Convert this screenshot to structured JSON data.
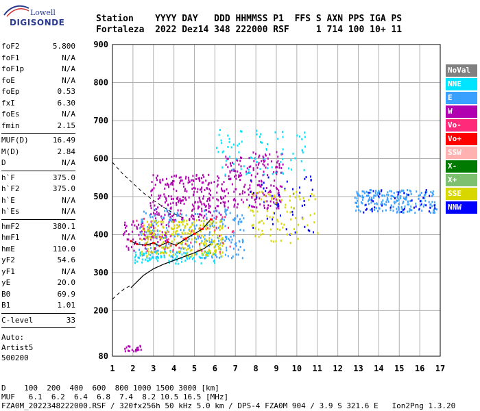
{
  "logo": {
    "line1": "Lowell",
    "line2": "DIGISONDE"
  },
  "header": {
    "row1": "Station    YYYY DAY   DDD HHMMSS P1  FFS S AXN PPS IGA PS",
    "row2": "Fortaleza  2022 Dez14 348 222000 RSF     1 714 100 10+ 11"
  },
  "params": {
    "group1": [
      {
        "label": "foF2",
        "value": "5.800"
      },
      {
        "label": "foF1",
        "value": "N/A"
      },
      {
        "label": "foF1p",
        "value": "N/A"
      },
      {
        "label": "foE",
        "value": "N/A"
      },
      {
        "label": "foEp",
        "value": "0.53"
      },
      {
        "label": "fxI",
        "value": "6.30"
      },
      {
        "label": "foEs",
        "value": "N/A"
      },
      {
        "label": "fmin",
        "value": "2.15"
      }
    ],
    "group2": [
      {
        "label": "MUF(D)",
        "value": "16.49"
      },
      {
        "label": "M(D)",
        "value": "2.84"
      },
      {
        "label": "D",
        "value": "N/A"
      }
    ],
    "group3": [
      {
        "label": "h`F",
        "value": "375.0"
      },
      {
        "label": "h`F2",
        "value": "375.0"
      },
      {
        "label": "h`E",
        "value": "N/A"
      },
      {
        "label": "h`Es",
        "value": "N/A"
      }
    ],
    "group4": [
      {
        "label": "hmF2",
        "value": "380.1"
      },
      {
        "label": "hmF1",
        "value": "N/A"
      },
      {
        "label": "hmE",
        "value": "110.0"
      },
      {
        "label": "yF2",
        "value": "54.6"
      },
      {
        "label": "yF1",
        "value": "N/A"
      },
      {
        "label": "yE",
        "value": "20.0"
      },
      {
        "label": "B0",
        "value": "69.9"
      },
      {
        "label": "B1",
        "value": "1.01"
      }
    ],
    "group5": [
      {
        "label": "C-level",
        "value": "33"
      }
    ]
  },
  "auto": {
    "line1": "Auto:",
    "line2": "Artist5",
    "line3": "500200"
  },
  "legend": [
    {
      "label": "NoVal",
      "color": "#808080"
    },
    {
      "label": "NNE",
      "color": "#00e5ff"
    },
    {
      "label": "E",
      "color": "#3aa0ff"
    },
    {
      "label": "W",
      "color": "#b000b0"
    },
    {
      "label": "Vo-",
      "color": "#ff2a7a"
    },
    {
      "label": "Vo+",
      "color": "#ff0000"
    },
    {
      "label": "SSW",
      "color": "#ffb0b0"
    },
    {
      "label": "X-",
      "color": "#007a00"
    },
    {
      "label": "X+",
      "color": "#7cc070"
    },
    {
      "label": "SSE",
      "color": "#d8d800"
    },
    {
      "label": "NNW",
      "color": "#0000ff"
    }
  ],
  "chart_data": {
    "type": "scatter",
    "title": "",
    "xlabel": "",
    "ylabel": "",
    "xlim": [
      1,
      17
    ],
    "ylim": [
      80,
      900
    ],
    "x_ticks": [
      1,
      2,
      3,
      4,
      5,
      6,
      7,
      8,
      9,
      10,
      11,
      12,
      13,
      14,
      15,
      16,
      17
    ],
    "y_ticks": [
      80,
      200,
      300,
      400,
      500,
      600,
      700,
      800,
      900
    ],
    "grid": true,
    "legend_position": "right",
    "clusters": [
      {
        "direction": "W",
        "x_range": [
          2.8,
          6.4
        ],
        "y_range": [
          440,
          560
        ],
        "count": 260
      },
      {
        "direction": "W",
        "x_range": [
          6.4,
          9.3
        ],
        "y_range": [
          470,
          620
        ],
        "count": 200
      },
      {
        "direction": "W",
        "x_range": [
          1.5,
          3.8
        ],
        "y_range": [
          360,
          440
        ],
        "count": 90
      },
      {
        "direction": "E",
        "x_range": [
          2.2,
          7.4
        ],
        "y_range": [
          340,
          470
        ],
        "count": 260
      },
      {
        "direction": "NNE",
        "x_range": [
          6.0,
          10.5
        ],
        "y_range": [
          560,
          680
        ],
        "count": 80
      },
      {
        "direction": "NNE",
        "x_range": [
          2.0,
          6.0
        ],
        "y_range": [
          325,
          360
        ],
        "count": 90
      },
      {
        "direction": "SSE",
        "x_range": [
          2.4,
          6.4
        ],
        "y_range": [
          345,
          440
        ],
        "count": 260
      },
      {
        "direction": "Vo-",
        "x_range": [
          2.0,
          7.0
        ],
        "y_range": [
          350,
          460
        ],
        "count": 40
      },
      {
        "direction": "NNW",
        "x_range": [
          7.6,
          10.8
        ],
        "y_range": [
          400,
          560
        ],
        "count": 50
      },
      {
        "direction": "E",
        "x_range": [
          12.8,
          16.8
        ],
        "y_range": [
          460,
          520
        ],
        "count": 200
      },
      {
        "direction": "NNW",
        "x_range": [
          13.0,
          16.8
        ],
        "y_range": [
          460,
          520
        ],
        "count": 40
      },
      {
        "direction": "SSE",
        "x_range": [
          7.6,
          11.0
        ],
        "y_range": [
          380,
          520
        ],
        "count": 90
      },
      {
        "direction": "W",
        "x_range": [
          1.5,
          2.4
        ],
        "y_range": [
          95,
          110
        ],
        "count": 20
      }
    ],
    "trace_virtual_height": [
      {
        "x": 1.9,
        "y": 383
      },
      {
        "x": 2.2,
        "y": 375
      },
      {
        "x": 2.6,
        "y": 372
      },
      {
        "x": 3.0,
        "y": 378
      },
      {
        "x": 3.3,
        "y": 370
      },
      {
        "x": 3.7,
        "y": 380
      },
      {
        "x": 4.1,
        "y": 372
      },
      {
        "x": 4.6,
        "y": 390
      },
      {
        "x": 5.0,
        "y": 402
      },
      {
        "x": 5.4,
        "y": 415
      },
      {
        "x": 5.8,
        "y": 440
      }
    ],
    "trace_true_height": [
      {
        "x": 1.9,
        "y": 260
      },
      {
        "x": 2.5,
        "y": 292
      },
      {
        "x": 3.0,
        "y": 310
      },
      {
        "x": 3.5,
        "y": 322
      },
      {
        "x": 4.0,
        "y": 332
      },
      {
        "x": 4.5,
        "y": 342
      },
      {
        "x": 5.0,
        "y": 352
      },
      {
        "x": 5.5,
        "y": 364
      },
      {
        "x": 5.8,
        "y": 376
      }
    ],
    "dashed_upper": [
      {
        "x": 1.0,
        "y": 590
      },
      {
        "x": 1.5,
        "y": 560
      },
      {
        "x": 2.0,
        "y": 535
      },
      {
        "x": 2.5,
        "y": 510
      },
      {
        "x": 3.0,
        "y": 490
      },
      {
        "x": 3.5,
        "y": 472
      },
      {
        "x": 4.0,
        "y": 455
      },
      {
        "x": 4.4,
        "y": 445
      }
    ],
    "dashed_lower": [
      {
        "x": 1.0,
        "y": 230
      },
      {
        "x": 1.3,
        "y": 245
      },
      {
        "x": 1.6,
        "y": 258
      },
      {
        "x": 1.9,
        "y": 266
      }
    ]
  },
  "footer": {
    "row1": "D    100  200  400  600  800 1000 1500 3000 [km]",
    "row2": "MUF   6.1  6.2  6.4  6.8  7.4  8.2 10.5 16.5 [MHz]",
    "row3": "FZA0M_2022348222000.RSF / 320fx256h 50 kHz 5.0 km / DPS-4 FZA0M 904 / 3.9 S 321.6 E   Ion2Png 1.3.20"
  }
}
